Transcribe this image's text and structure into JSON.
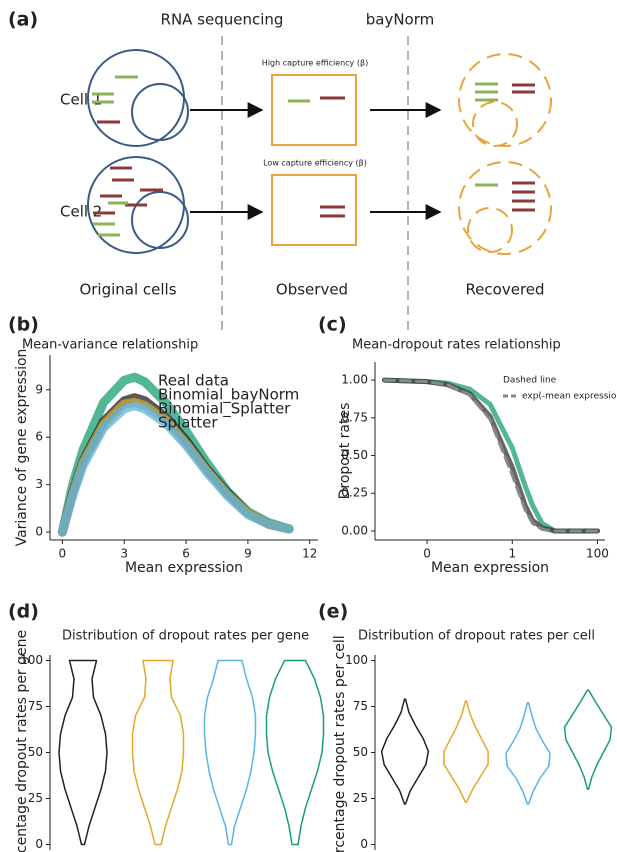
{
  "diagram": {
    "panel": "(a)",
    "columns": [
      "RNA sequencing",
      "bayNorm"
    ],
    "rows": [
      "Cell 1",
      "Cell 2"
    ],
    "notes": [
      "High capture efficiency (β)",
      "Low capture efficiency (β)"
    ],
    "footers": [
      "Original cells",
      "Observed",
      "Recovered"
    ]
  },
  "chart_data": [
    {
      "type": "line",
      "panel": "(b)",
      "title": "Mean-variance relationship",
      "xlabel": "Mean expression",
      "ylabel": "Variance of gene expression",
      "xlim": [
        -0.6,
        12.4
      ],
      "ylim": [
        -0.5,
        11.2
      ],
      "xticks": [
        0,
        3,
        6,
        9,
        12
      ],
      "yticks": [
        0,
        3,
        6,
        9
      ],
      "x": [
        0,
        0.5,
        1,
        2,
        3,
        3.5,
        4,
        5,
        6,
        7,
        8,
        9,
        10,
        11
      ],
      "series": [
        {
          "name": "Splatter",
          "color": "#1a9e77",
          "values": [
            0,
            3,
            5.2,
            8.2,
            9.6,
            9.8,
            9.5,
            8.2,
            6.4,
            4.4,
            2.6,
            1.3,
            0.6,
            0.2
          ]
        },
        {
          "name": "Real data",
          "color": "#222222",
          "values": [
            0,
            2.5,
            4.5,
            7,
            8.3,
            8.5,
            8.3,
            7.3,
            5.8,
            4,
            2.5,
            1.2,
            0.5,
            0.2
          ]
        },
        {
          "name": "Binomial_bayNorm",
          "color": "#e3a82b",
          "values": [
            0,
            2.4,
            4.4,
            6.8,
            8.1,
            8.2,
            8,
            7.1,
            5.6,
            3.9,
            2.4,
            1.2,
            0.5,
            0.2
          ]
        },
        {
          "name": "Binomial_Splatter",
          "color": "#5ab4e5",
          "values": [
            0,
            2.3,
            4.2,
            6.6,
            7.8,
            8,
            7.8,
            6.9,
            5.5,
            3.8,
            2.3,
            1.1,
            0.5,
            0.2
          ]
        }
      ]
    },
    {
      "type": "line",
      "panel": "(c)",
      "title": "Mean-dropout rates relationship",
      "xlabel": "Mean expression",
      "ylabel": "Dropout rates",
      "xscale": "log",
      "xlim": [
        0.0006,
        150
      ],
      "ylim": [
        -0.06,
        1.12
      ],
      "xticks": [
        {
          "value": 0.01,
          "label": "0"
        },
        1,
        100
      ],
      "yticks": [
        {
          "value": 0,
          "label": "0.00"
        },
        0.25,
        {
          "value": 0.5,
          "label": "0.50"
        },
        0.75,
        {
          "value": 1,
          "label": "1.00"
        }
      ],
      "legend_title": "Dashed line",
      "x": [
        0.001,
        0.01,
        0.03,
        0.1,
        0.3,
        1,
        2,
        3,
        5,
        10,
        30,
        100
      ],
      "series": [
        {
          "color": "#1a9e77",
          "values": [
            1,
            0.99,
            0.98,
            0.94,
            0.84,
            0.55,
            0.3,
            0.17,
            0.05,
            0,
            0,
            0
          ]
        },
        {
          "color": "#333333",
          "values": [
            1,
            0.99,
            0.97,
            0.91,
            0.76,
            0.42,
            0.17,
            0.07,
            0.02,
            0,
            0,
            0
          ]
        },
        {
          "name": "exp(-mean expression)",
          "color": "#888888",
          "dashed": true,
          "values": [
            1,
            0.99,
            0.97,
            0.9,
            0.74,
            0.37,
            0.14,
            0.05,
            0.01,
            0,
            0,
            0
          ]
        }
      ]
    },
    {
      "type": "violin",
      "panel": "(d)",
      "title": "Distribution of dropout rates per gene",
      "ylabel": "Percentage dropout rates per gene",
      "ylim": [
        -3,
        103
      ],
      "yticks": [
        0,
        25,
        50,
        75,
        100
      ],
      "series": [
        {
          "color": "#222222",
          "range": [
            0,
            100
          ],
          "widths": [
            0.05,
            0.2,
            0.4,
            0.6,
            0.75,
            0.8,
            0.75,
            0.6,
            0.35,
            0.3,
            0.45
          ]
        },
        {
          "color": "#e3a82b",
          "range": [
            0,
            100
          ],
          "widths": [
            0.1,
            0.25,
            0.45,
            0.65,
            0.8,
            0.85,
            0.85,
            0.75,
            0.45,
            0.4,
            0.5
          ]
        },
        {
          "color": "#5ab4e5",
          "range": [
            0,
            100
          ],
          "widths": [
            0.05,
            0.15,
            0.35,
            0.55,
            0.7,
            0.8,
            0.85,
            0.85,
            0.75,
            0.55,
            0.4
          ]
        },
        {
          "color": "#1a9e77",
          "range": [
            0,
            100
          ],
          "widths": [
            0.1,
            0.2,
            0.35,
            0.55,
            0.75,
            0.9,
            0.95,
            0.95,
            0.85,
            0.65,
            0.35
          ]
        }
      ]
    },
    {
      "type": "violin",
      "panel": "(e)",
      "title": "Distribution of dropout rates per cell",
      "ylabel": "Percentage dropout rates per cell",
      "ylim": [
        -3,
        103
      ],
      "yticks": [
        0,
        25,
        50,
        75,
        100
      ],
      "series": [
        {
          "color": "#222222",
          "range": [
            22,
            79
          ],
          "widths": [
            0.02,
            0.2,
            0.5,
            0.8,
            0.9,
            0.7,
            0.4,
            0.15,
            0.02
          ]
        },
        {
          "color": "#e3a82b",
          "range": [
            23,
            78
          ],
          "widths": [
            0.02,
            0.25,
            0.55,
            0.85,
            0.85,
            0.6,
            0.35,
            0.15,
            0.02
          ]
        },
        {
          "color": "#5ab4e5",
          "range": [
            22,
            77
          ],
          "widths": [
            0.02,
            0.2,
            0.45,
            0.8,
            0.85,
            0.55,
            0.3,
            0.15,
            0.02
          ]
        },
        {
          "color": "#1a9e77",
          "range": [
            30,
            84
          ],
          "widths": [
            0.02,
            0.15,
            0.35,
            0.6,
            0.85,
            0.9,
            0.6,
            0.3,
            0.02
          ]
        }
      ]
    }
  ]
}
